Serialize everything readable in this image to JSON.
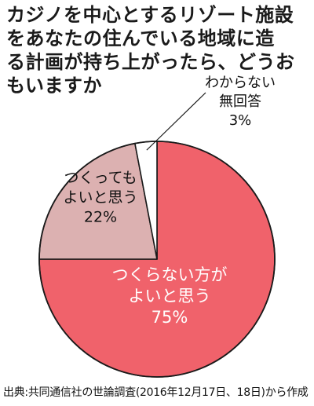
{
  "title_lines": [
    "カジノを中心とするリゾート施設",
    "をあなたの住んでいる地域に造",
    "る計画が持ち上がったら、どうお",
    "もいますか"
  ],
  "source": "出典:共同通信社の世論調査(2016年12月17日、18日)から作成",
  "chart_data": {
    "type": "pie",
    "title": "カジノを中心とするリゾート施設をあなたの住んでいる地域に造る計画が持ち上がったら、どうおもいますか",
    "slices": [
      {
        "label_lines": [
          "つくらない方が",
          "よいと思う"
        ],
        "value": 75,
        "value_text": "75%",
        "color": "#f0626b"
      },
      {
        "label_lines": [
          "つくっても",
          "よいと思う"
        ],
        "value": 22,
        "value_text": "22%",
        "color": "#dcb1b1"
      },
      {
        "label_lines": [
          "わからない",
          "無回答"
        ],
        "value": 3,
        "value_text": "3%",
        "color": "#ffffff"
      }
    ],
    "label_colors": [
      "#ffffff",
      "#111111",
      "#111111"
    ],
    "start": "12 o'clock",
    "direction": "clockwise",
    "outline_color": "#1a1a1a"
  }
}
